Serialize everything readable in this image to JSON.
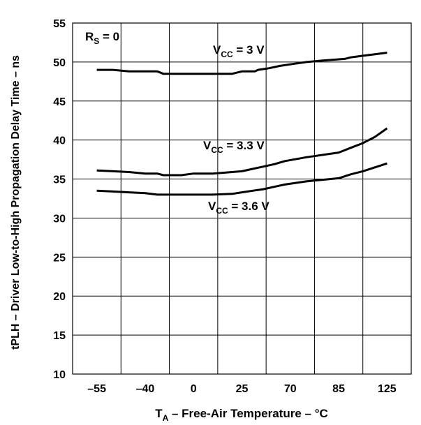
{
  "chart_data": {
    "type": "line",
    "x_tick_labels": [
      "-55",
      "-40",
      "0",
      "25",
      "70",
      "85",
      "125"
    ],
    "y_ticks": [
      10,
      15,
      20,
      25,
      30,
      35,
      40,
      45,
      50,
      55
    ],
    "ylim": [
      10,
      55
    ],
    "grid": true,
    "xlabel": {
      "main": "T",
      "sub": "A",
      "rest": " – Free-Air Temperature – °C"
    },
    "ylabel": "tPLH – Driver Low-to-High Propagation Delay Time – ns",
    "annotation": {
      "main": "R",
      "sub": "S",
      "rest": " = 0"
    },
    "series": [
      {
        "label": {
          "main": "V",
          "sub": "CC",
          "rest": " = 3 V"
        },
        "points": [
          [
            -55,
            49.0
          ],
          [
            -50,
            49.0
          ],
          [
            -45,
            48.8
          ],
          [
            -30,
            48.8
          ],
          [
            -25,
            48.5
          ],
          [
            -10,
            48.5
          ],
          [
            0,
            48.5
          ],
          [
            10,
            48.5
          ],
          [
            20,
            48.5
          ],
          [
            25,
            48.8
          ],
          [
            37,
            48.8
          ],
          [
            40,
            49.0
          ],
          [
            50,
            49.2
          ],
          [
            60,
            49.5
          ],
          [
            70,
            49.7
          ],
          [
            75,
            50.0
          ],
          [
            80,
            50.2
          ],
          [
            90,
            50.4
          ],
          [
            95,
            50.6
          ],
          [
            105,
            50.8
          ],
          [
            115,
            51.0
          ],
          [
            125,
            51.2
          ]
        ]
      },
      {
        "label": {
          "main": "V",
          "sub": "CC",
          "rest": " = 3.3 V"
        },
        "points": [
          [
            -55,
            36.1
          ],
          [
            -50,
            36.0
          ],
          [
            -45,
            35.9
          ],
          [
            -40,
            35.7
          ],
          [
            -30,
            35.7
          ],
          [
            -25,
            35.5
          ],
          [
            -10,
            35.5
          ],
          [
            0,
            35.7
          ],
          [
            10,
            35.7
          ],
          [
            20,
            35.9
          ],
          [
            25,
            36.0
          ],
          [
            35,
            36.3
          ],
          [
            45,
            36.6
          ],
          [
            55,
            36.9
          ],
          [
            65,
            37.3
          ],
          [
            75,
            37.8
          ],
          [
            85,
            38.4
          ],
          [
            95,
            39.0
          ],
          [
            105,
            39.6
          ],
          [
            115,
            40.4
          ],
          [
            125,
            41.5
          ]
        ]
      },
      {
        "label": {
          "main": "V",
          "sub": "CC",
          "rest": " = 3.6 V"
        },
        "points": [
          [
            -55,
            33.5
          ],
          [
            -50,
            33.4
          ],
          [
            -45,
            33.3
          ],
          [
            -40,
            33.2
          ],
          [
            -30,
            33.0
          ],
          [
            -10,
            33.0
          ],
          [
            0,
            33.0
          ],
          [
            10,
            33.0
          ],
          [
            20,
            33.1
          ],
          [
            25,
            33.3
          ],
          [
            35,
            33.5
          ],
          [
            45,
            33.7
          ],
          [
            55,
            34.0
          ],
          [
            65,
            34.3
          ],
          [
            75,
            34.7
          ],
          [
            85,
            35.1
          ],
          [
            95,
            35.6
          ],
          [
            105,
            36.0
          ],
          [
            115,
            36.5
          ],
          [
            125,
            37.0
          ]
        ]
      }
    ]
  }
}
